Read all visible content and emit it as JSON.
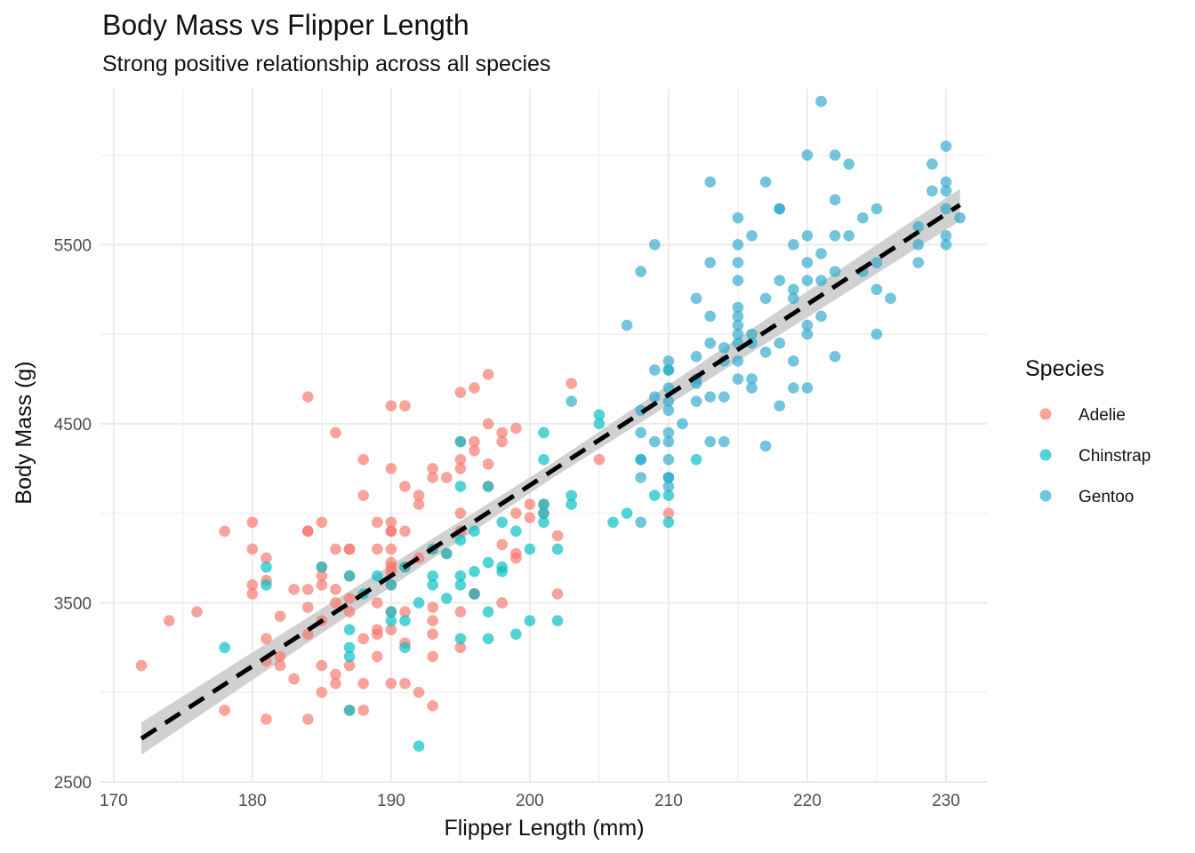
{
  "chart_data": {
    "type": "scatter",
    "title": "Body Mass vs Flipper Length",
    "subtitle": "Strong positive relationship across all species",
    "xlabel": "Flipper Length (mm)",
    "ylabel": "Body Mass (g)",
    "xlim": [
      169.05,
      232.95
    ],
    "ylim": [
      2500,
      6370
    ],
    "x_ticks": [
      170,
      180,
      190,
      200,
      210,
      220,
      230
    ],
    "y_ticks": [
      2500,
      3500,
      4500,
      5500
    ],
    "grid": true,
    "legend": {
      "title": "Species",
      "position": "right"
    },
    "trend": {
      "type": "linear",
      "style": "dashed",
      "color": "#000000",
      "x": [
        172,
        231
      ],
      "y": [
        2742,
        5722
      ],
      "ci_halfwidth": [
        90,
        42,
        90
      ],
      "ci_x": [
        172,
        201.5,
        231
      ],
      "ci_color": "#cccccc"
    },
    "series": [
      {
        "name": "Adelie",
        "color": "#F8766D",
        "points": [
          [
            172,
            3150
          ],
          [
            174,
            3400
          ],
          [
            176,
            3450
          ],
          [
            178,
            3900
          ],
          [
            178,
            2900
          ],
          [
            180,
            3950
          ],
          [
            180,
            3800
          ],
          [
            180,
            3600
          ],
          [
            180,
            3550
          ],
          [
            181,
            3300
          ],
          [
            181,
            2850
          ],
          [
            181,
            3625
          ],
          [
            181,
            3750
          ],
          [
            181,
            3175
          ],
          [
            182,
            3150
          ],
          [
            182,
            3425
          ],
          [
            182,
            3200
          ],
          [
            183,
            3575
          ],
          [
            183,
            3075
          ],
          [
            184,
            4650
          ],
          [
            184,
            3900
          ],
          [
            184,
            3900
          ],
          [
            184,
            3575
          ],
          [
            184,
            3475
          ],
          [
            184,
            2850
          ],
          [
            184,
            3325
          ],
          [
            185,
            3950
          ],
          [
            185,
            3650
          ],
          [
            185,
            3600
          ],
          [
            185,
            3400
          ],
          [
            185,
            3150
          ],
          [
            185,
            3000
          ],
          [
            185,
            3700
          ],
          [
            186,
            4450
          ],
          [
            186,
            3800
          ],
          [
            186,
            3575
          ],
          [
            186,
            3500
          ],
          [
            186,
            3100
          ],
          [
            186,
            3050
          ],
          [
            187,
            3800
          ],
          [
            187,
            3800
          ],
          [
            187,
            3650
          ],
          [
            187,
            3450
          ],
          [
            187,
            3525
          ],
          [
            187,
            3150
          ],
          [
            187,
            2900
          ],
          [
            188,
            4300
          ],
          [
            188,
            4100
          ],
          [
            188,
            3300
          ],
          [
            188,
            3050
          ],
          [
            188,
            2900
          ],
          [
            189,
            3950
          ],
          [
            189,
            3800
          ],
          [
            189,
            3500
          ],
          [
            189,
            3325
          ],
          [
            189,
            3350
          ],
          [
            189,
            3200
          ],
          [
            190,
            4600
          ],
          [
            190,
            4250
          ],
          [
            190,
            3950
          ],
          [
            190,
            3900
          ],
          [
            190,
            3800
          ],
          [
            190,
            3725
          ],
          [
            190,
            3700
          ],
          [
            190,
            3600
          ],
          [
            190,
            3450
          ],
          [
            190,
            3050
          ],
          [
            190,
            3350
          ],
          [
            190,
            3900
          ],
          [
            190,
            3675
          ],
          [
            191,
            4600
          ],
          [
            191,
            4150
          ],
          [
            191,
            3900
          ],
          [
            191,
            3700
          ],
          [
            191,
            3450
          ],
          [
            191,
            3275
          ],
          [
            191,
            3050
          ],
          [
            192,
            4100
          ],
          [
            192,
            4050
          ],
          [
            192,
            3750
          ],
          [
            192,
            3000
          ],
          [
            193,
            4250
          ],
          [
            193,
            4200
          ],
          [
            193,
            3800
          ],
          [
            193,
            3475
          ],
          [
            193,
            3400
          ],
          [
            193,
            3325
          ],
          [
            193,
            3200
          ],
          [
            193,
            2925
          ],
          [
            194,
            4200
          ],
          [
            194,
            3775
          ],
          [
            195,
            4675
          ],
          [
            195,
            4400
          ],
          [
            195,
            4300
          ],
          [
            195,
            4250
          ],
          [
            195,
            4000
          ],
          [
            195,
            3900
          ],
          [
            195,
            3450
          ],
          [
            195,
            3250
          ],
          [
            196,
            4700
          ],
          [
            196,
            4400
          ],
          [
            196,
            4350
          ],
          [
            196,
            3550
          ],
          [
            196,
            3550
          ],
          [
            197,
            4775
          ],
          [
            197,
            4500
          ],
          [
            197,
            4275
          ],
          [
            197,
            4150
          ],
          [
            198,
            4450
          ],
          [
            198,
            4400
          ],
          [
            198,
            3500
          ],
          [
            198,
            3825
          ],
          [
            199,
            4475
          ],
          [
            199,
            4000
          ],
          [
            199,
            3775
          ],
          [
            199,
            3750
          ],
          [
            200,
            4050
          ],
          [
            200,
            3975
          ],
          [
            201,
            4000
          ],
          [
            201,
            4050
          ],
          [
            202,
            3875
          ],
          [
            202,
            3550
          ],
          [
            203,
            4725
          ],
          [
            205,
            4300
          ],
          [
            210,
            4000
          ]
        ]
      },
      {
        "name": "Chinstrap",
        "color": "#00BFC4",
        "points": [
          [
            178,
            3250
          ],
          [
            181,
            3700
          ],
          [
            181,
            3600
          ],
          [
            185,
            3700
          ],
          [
            187,
            3650
          ],
          [
            187,
            3350
          ],
          [
            187,
            3200
          ],
          [
            187,
            2900
          ],
          [
            187,
            3250
          ],
          [
            188,
            3550
          ],
          [
            189,
            3650
          ],
          [
            190,
            3600
          ],
          [
            190,
            3400
          ],
          [
            190,
            3450
          ],
          [
            191,
            3400
          ],
          [
            191,
            3700
          ],
          [
            191,
            3250
          ],
          [
            192,
            3500
          ],
          [
            192,
            2700
          ],
          [
            193,
            3650
          ],
          [
            193,
            3600
          ],
          [
            193,
            3800
          ],
          [
            194,
            3775
          ],
          [
            194,
            3525
          ],
          [
            195,
            4400
          ],
          [
            195,
            4150
          ],
          [
            195,
            3650
          ],
          [
            195,
            3600
          ],
          [
            195,
            3300
          ],
          [
            195,
            3850
          ],
          [
            196,
            3900
          ],
          [
            196,
            3675
          ],
          [
            196,
            3550
          ],
          [
            197,
            4150
          ],
          [
            197,
            3725
          ],
          [
            197,
            3450
          ],
          [
            197,
            3300
          ],
          [
            198,
            3950
          ],
          [
            198,
            3700
          ],
          [
            198,
            3675
          ],
          [
            199,
            3900
          ],
          [
            199,
            3325
          ],
          [
            200,
            3800
          ],
          [
            200,
            3400
          ],
          [
            201,
            4450
          ],
          [
            201,
            4300
          ],
          [
            201,
            4050
          ],
          [
            201,
            4000
          ],
          [
            201,
            3950
          ],
          [
            202,
            3800
          ],
          [
            202,
            3400
          ],
          [
            203,
            4050
          ],
          [
            203,
            4100
          ],
          [
            205,
            4550
          ],
          [
            205,
            4500
          ],
          [
            206,
            3950
          ],
          [
            207,
            4000
          ],
          [
            208,
            4300
          ],
          [
            209,
            4100
          ],
          [
            210,
            4800
          ],
          [
            210,
            4100
          ],
          [
            210,
            3950
          ],
          [
            212,
            4300
          ]
        ]
      },
      {
        "name": "Gentoo",
        "color": "#2FA9CC",
        "points": [
          [
            203,
            4625
          ],
          [
            207,
            5050
          ],
          [
            208,
            5350
          ],
          [
            208,
            4575
          ],
          [
            208,
            4450
          ],
          [
            208,
            4300
          ],
          [
            208,
            4200
          ],
          [
            208,
            3950
          ],
          [
            209,
            5500
          ],
          [
            209,
            4800
          ],
          [
            209,
            4650
          ],
          [
            209,
            4400
          ],
          [
            210,
            4850
          ],
          [
            210,
            4800
          ],
          [
            210,
            4700
          ],
          [
            210,
            4625
          ],
          [
            210,
            4575
          ],
          [
            210,
            4450
          ],
          [
            210,
            4400
          ],
          [
            210,
            4300
          ],
          [
            210,
            4200
          ],
          [
            210,
            4150
          ],
          [
            210,
            4200
          ],
          [
            211,
            4500
          ],
          [
            212,
            5200
          ],
          [
            212,
            4875
          ],
          [
            212,
            4750
          ],
          [
            212,
            4625
          ],
          [
            212,
            4725
          ],
          [
            213,
            5850
          ],
          [
            213,
            5400
          ],
          [
            213,
            5100
          ],
          [
            213,
            4950
          ],
          [
            213,
            4650
          ],
          [
            213,
            4400
          ],
          [
            214,
            4925
          ],
          [
            214,
            4850
          ],
          [
            214,
            4650
          ],
          [
            214,
            4400
          ],
          [
            215,
            5650
          ],
          [
            215,
            5500
          ],
          [
            215,
            5300
          ],
          [
            215,
            5150
          ],
          [
            215,
            5100
          ],
          [
            215,
            5050
          ],
          [
            215,
            5000
          ],
          [
            215,
            4950
          ],
          [
            215,
            4850
          ],
          [
            215,
            4750
          ],
          [
            215,
            5400
          ],
          [
            216,
            5550
          ],
          [
            216,
            5000
          ],
          [
            216,
            4950
          ],
          [
            216,
            4750
          ],
          [
            216,
            4700
          ],
          [
            217,
            5850
          ],
          [
            217,
            5200
          ],
          [
            217,
            4900
          ],
          [
            217,
            4375
          ],
          [
            218,
            5700
          ],
          [
            218,
            5700
          ],
          [
            218,
            5300
          ],
          [
            218,
            4950
          ],
          [
            218,
            4600
          ],
          [
            219,
            5500
          ],
          [
            219,
            5250
          ],
          [
            219,
            5200
          ],
          [
            219,
            4850
          ],
          [
            219,
            4700
          ],
          [
            220,
            6000
          ],
          [
            220,
            5550
          ],
          [
            220,
            5400
          ],
          [
            220,
            5300
          ],
          [
            220,
            5050
          ],
          [
            220,
            5000
          ],
          [
            220,
            4700
          ],
          [
            221,
            6300
          ],
          [
            221,
            5450
          ],
          [
            221,
            5300
          ],
          [
            221,
            5100
          ],
          [
            222,
            6000
          ],
          [
            222,
            5750
          ],
          [
            222,
            5550
          ],
          [
            222,
            5350
          ],
          [
            222,
            4875
          ],
          [
            223,
            5950
          ],
          [
            223,
            5550
          ],
          [
            224,
            5650
          ],
          [
            224,
            5350
          ],
          [
            225,
            5700
          ],
          [
            225,
            5400
          ],
          [
            225,
            5250
          ],
          [
            225,
            5000
          ],
          [
            226,
            5200
          ],
          [
            228,
            5600
          ],
          [
            228,
            5500
          ],
          [
            228,
            5400
          ],
          [
            229,
            5950
          ],
          [
            229,
            5800
          ],
          [
            230,
            6050
          ],
          [
            230,
            5850
          ],
          [
            230,
            5800
          ],
          [
            230,
            5700
          ],
          [
            230,
            5550
          ],
          [
            230,
            5500
          ],
          [
            231,
            5650
          ]
        ]
      }
    ]
  }
}
